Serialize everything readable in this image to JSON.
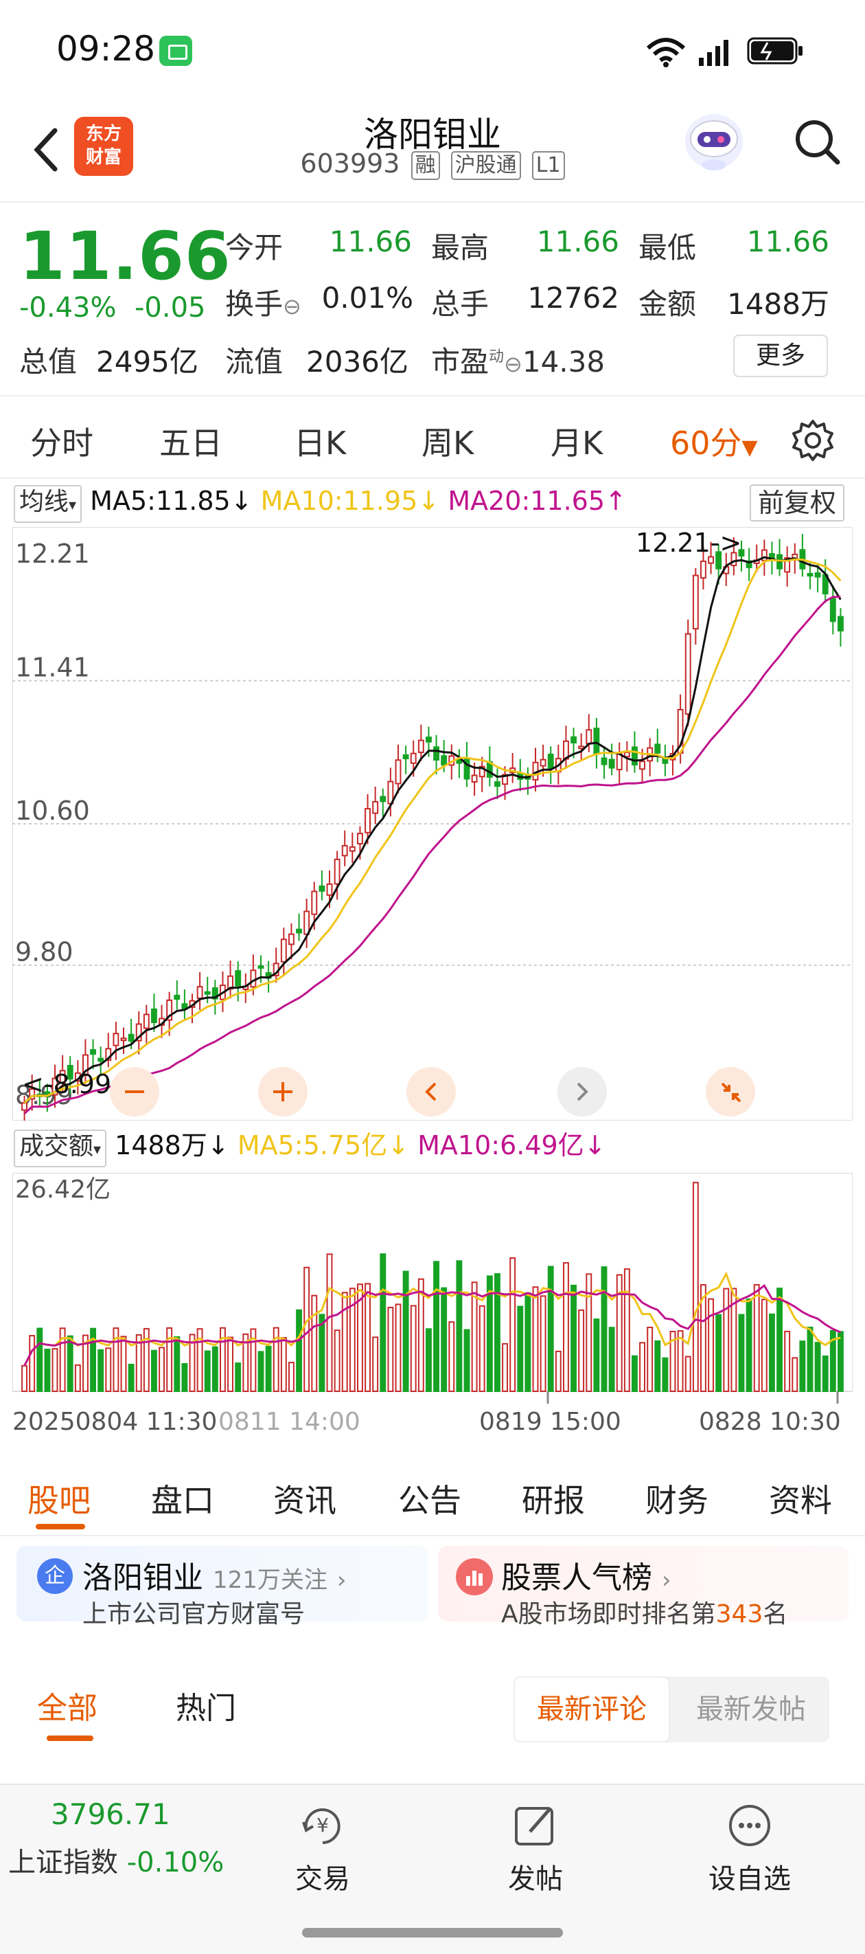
{
  "status": {
    "time": "09:28"
  },
  "header": {
    "logo_line1": "东方",
    "logo_line2": "财富",
    "title": "洛阳钼业",
    "code": "603993",
    "tags": [
      "融",
      "沪股通",
      "L1"
    ]
  },
  "quote": {
    "price": "11.66",
    "change_pct": "-0.43%",
    "change_abs": "-0.05",
    "open_label": "今开",
    "open": "11.66",
    "high_label": "最高",
    "high": "11.66",
    "low_label": "最低",
    "low": "11.66",
    "turnover_label": "换手",
    "turnover": "0.01%",
    "volume_label": "总手",
    "volume": "12762",
    "amount_label": "金额",
    "amount": "1488万",
    "mktcap_label": "总值",
    "mktcap": "2495亿",
    "float_label": "流值",
    "float": "2036亿",
    "pe_label": "市盈",
    "pe_sup": "动",
    "pe": "14.38",
    "more": "更多"
  },
  "periods": {
    "tabs": [
      "分时",
      "五日",
      "日K",
      "周K",
      "月K"
    ],
    "active": "60分",
    "active_arrow": "▼"
  },
  "ma_bar": {
    "dropdown": "均线",
    "ma5": "MA5:11.85",
    "ma5_arrow": "↓",
    "ma10": "MA10:11.95",
    "ma10_arrow": "↓",
    "ma20": "MA20:11.65",
    "ma20_arrow": "↑",
    "adjust": "前复权"
  },
  "vol_bar": {
    "dropdown": "成交额",
    "value": "1488万",
    "value_arrow": "↓",
    "ma5": "MA5:5.75亿",
    "ma5_arrow": "↓",
    "ma10": "MA10:6.49亿",
    "ma10_arrow": "↓"
  },
  "chart_data": {
    "type": "candlestick",
    "yticks": [
      "12.21",
      "11.41",
      "10.60",
      "9.80",
      "8.99"
    ],
    "ylim": [
      8.99,
      12.21
    ],
    "max_label": "12.21->",
    "min_label": "<-8.99",
    "vol_max_label": "26.42亿",
    "xticks": [
      "20250804 11:30",
      "0811 14:00",
      "0819 15:00",
      "0828 10:30"
    ],
    "colors": {
      "up": "#c62828",
      "down": "#16a325",
      "ma5": "#111111",
      "ma10": "#f0c419",
      "ma20": "#c0138d"
    }
  },
  "info_tabs": [
    "股吧",
    "盘口",
    "资讯",
    "公告",
    "研报",
    "财务",
    "资料"
  ],
  "cards": {
    "c1_title": "洛阳钼业",
    "c1_follow": "121万关注",
    "c1_sub": "上市公司官方财富号",
    "c1_badge": "企",
    "c2_title": "股票人气榜",
    "c2_sub_pre": "A股市场即时排名第",
    "c2_rank": "343",
    "c2_sub_post": "名"
  },
  "filters": {
    "all": "全部",
    "hot": "热门",
    "latest_comment": "最新评论",
    "latest_post": "最新发帖"
  },
  "bottom": {
    "index_value": "3796.71",
    "index_name": "上证指数",
    "index_change": "-0.10%",
    "trade": "交易",
    "post": "发帖",
    "watch": "设自选"
  }
}
